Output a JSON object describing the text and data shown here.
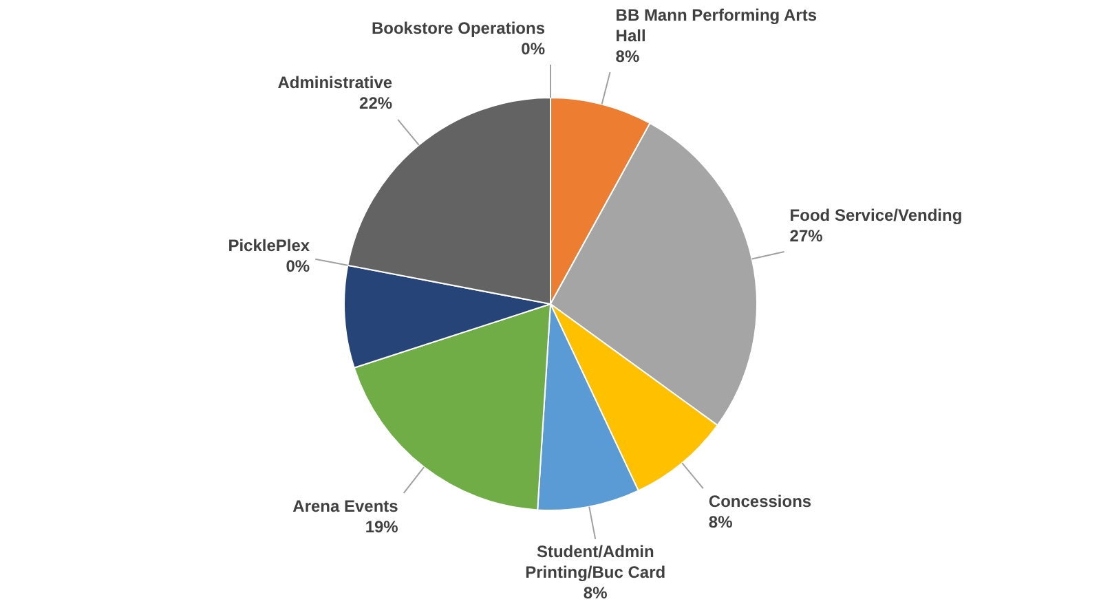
{
  "chart_data": {
    "type": "pie",
    "categories": [
      "Bookstore Operations",
      "BB Mann Performing Arts Hall",
      "Food Service/Vending",
      "Concessions",
      "Student/Admin Printing/Buc Card",
      "Arena Events",
      null,
      "PicklePlex",
      "Administrative"
    ],
    "values": [
      0,
      8,
      27,
      8,
      8,
      19,
      8,
      0,
      22
    ],
    "colors": [
      "#a5a5a5",
      "#ed7d31",
      "#a5a5a5",
      "#ffc000",
      "#5b9bd5",
      "#70ad47",
      "#264478",
      "#9e480e",
      "#636363"
    ],
    "value_labels": [
      "0%",
      "8%",
      "27%",
      "8%",
      "8%",
      "19%",
      null,
      "0%",
      "22%"
    ],
    "legend": false
  }
}
